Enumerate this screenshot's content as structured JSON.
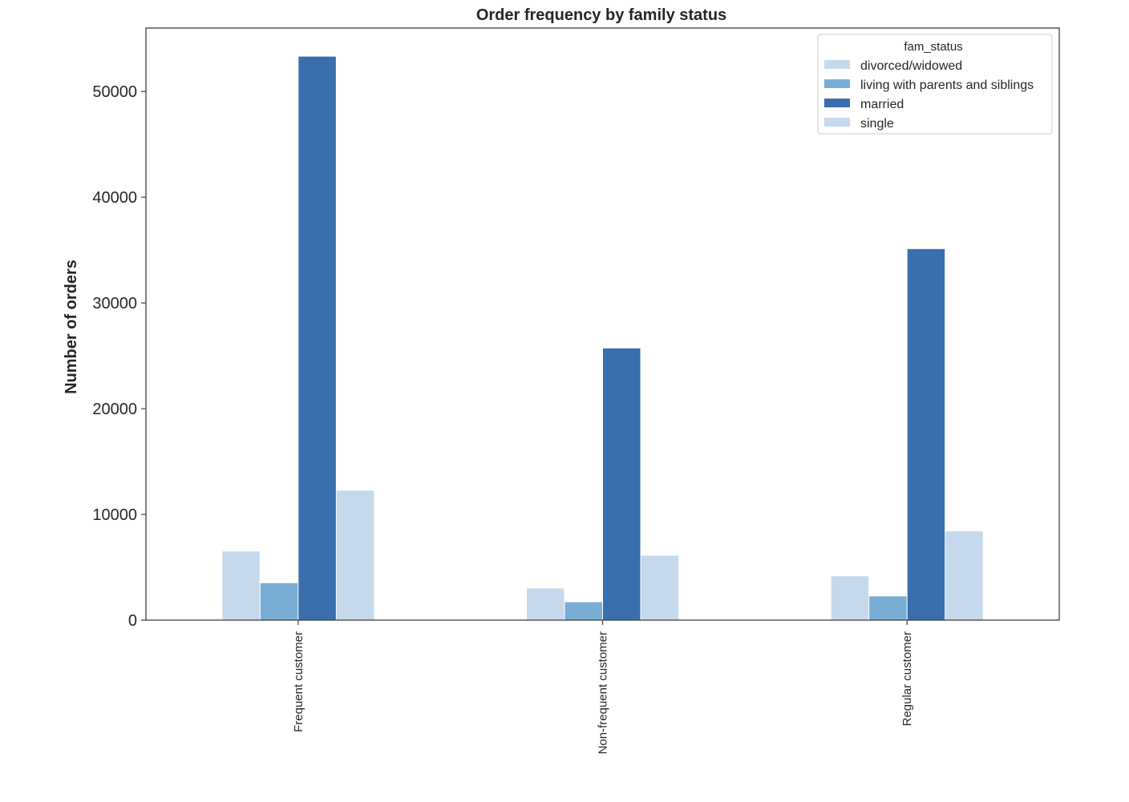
{
  "chart_data": {
    "type": "bar",
    "title": "Order frequency by family status",
    "xlabel": "",
    "ylabel": "Number of orders",
    "categories": [
      "Frequent customer",
      "Non-frequent customer",
      "Regular customer"
    ],
    "series": [
      {
        "name": "divorced/widowed",
        "color": "#c6d9ec",
        "values": [
          6500,
          3000,
          4150
        ]
      },
      {
        "name": "living with parents and siblings",
        "color": "#7aadd4",
        "values": [
          3500,
          1700,
          2250
        ]
      },
      {
        "name": "married",
        "color": "#3a6ead",
        "values": [
          53300,
          25700,
          35100
        ]
      },
      {
        "name": "single",
        "color": "#c6d9ec",
        "values": [
          12250,
          6100,
          8400
        ]
      }
    ],
    "ylim": [
      0,
      56000
    ],
    "yticks": [
      0,
      10000,
      20000,
      30000,
      40000,
      50000
    ],
    "grid": false,
    "legend": {
      "title": "fam_status",
      "placement": "top-right"
    }
  }
}
